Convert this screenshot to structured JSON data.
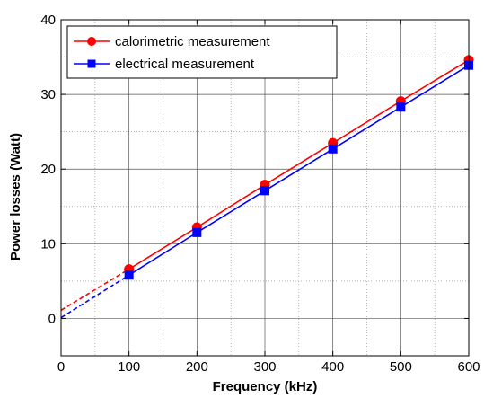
{
  "chart_data": {
    "type": "line",
    "title": "",
    "xlabel": "Frequency  (kHz)",
    "ylabel": "Power losses  (Watt)",
    "xlim": [
      0,
      600
    ],
    "ylim": [
      -5,
      40
    ],
    "x_ticks": [
      0,
      100,
      200,
      300,
      400,
      500,
      600
    ],
    "y_ticks": [
      0,
      10,
      20,
      30,
      40
    ],
    "x_tick_labels": [
      "0",
      "100",
      "200",
      "300",
      "400",
      "500",
      "600"
    ],
    "y_tick_labels": [
      "0",
      "10",
      "20",
      "30",
      "40"
    ],
    "grid": true,
    "minor_grid": true,
    "legend_position": "top-left",
    "series": [
      {
        "name": "calorimetric measurement",
        "color": "#ff0000",
        "marker": "circle",
        "x": [
          100,
          200,
          300,
          400,
          500,
          600
        ],
        "y": [
          6.6,
          12.2,
          17.9,
          23.5,
          29.1,
          34.6
        ],
        "extrapolation": {
          "x": [
            0,
            100
          ],
          "y": [
            1.1,
            6.6
          ],
          "style": "dashed"
        }
      },
      {
        "name": "electrical measurement",
        "color": "#0000ff",
        "marker": "square",
        "x": [
          100,
          200,
          300,
          400,
          500,
          600
        ],
        "y": [
          5.8,
          11.5,
          17.1,
          22.7,
          28.3,
          33.9
        ],
        "extrapolation": {
          "x": [
            0,
            100
          ],
          "y": [
            0.1,
            5.8
          ],
          "style": "dashed"
        }
      }
    ]
  }
}
